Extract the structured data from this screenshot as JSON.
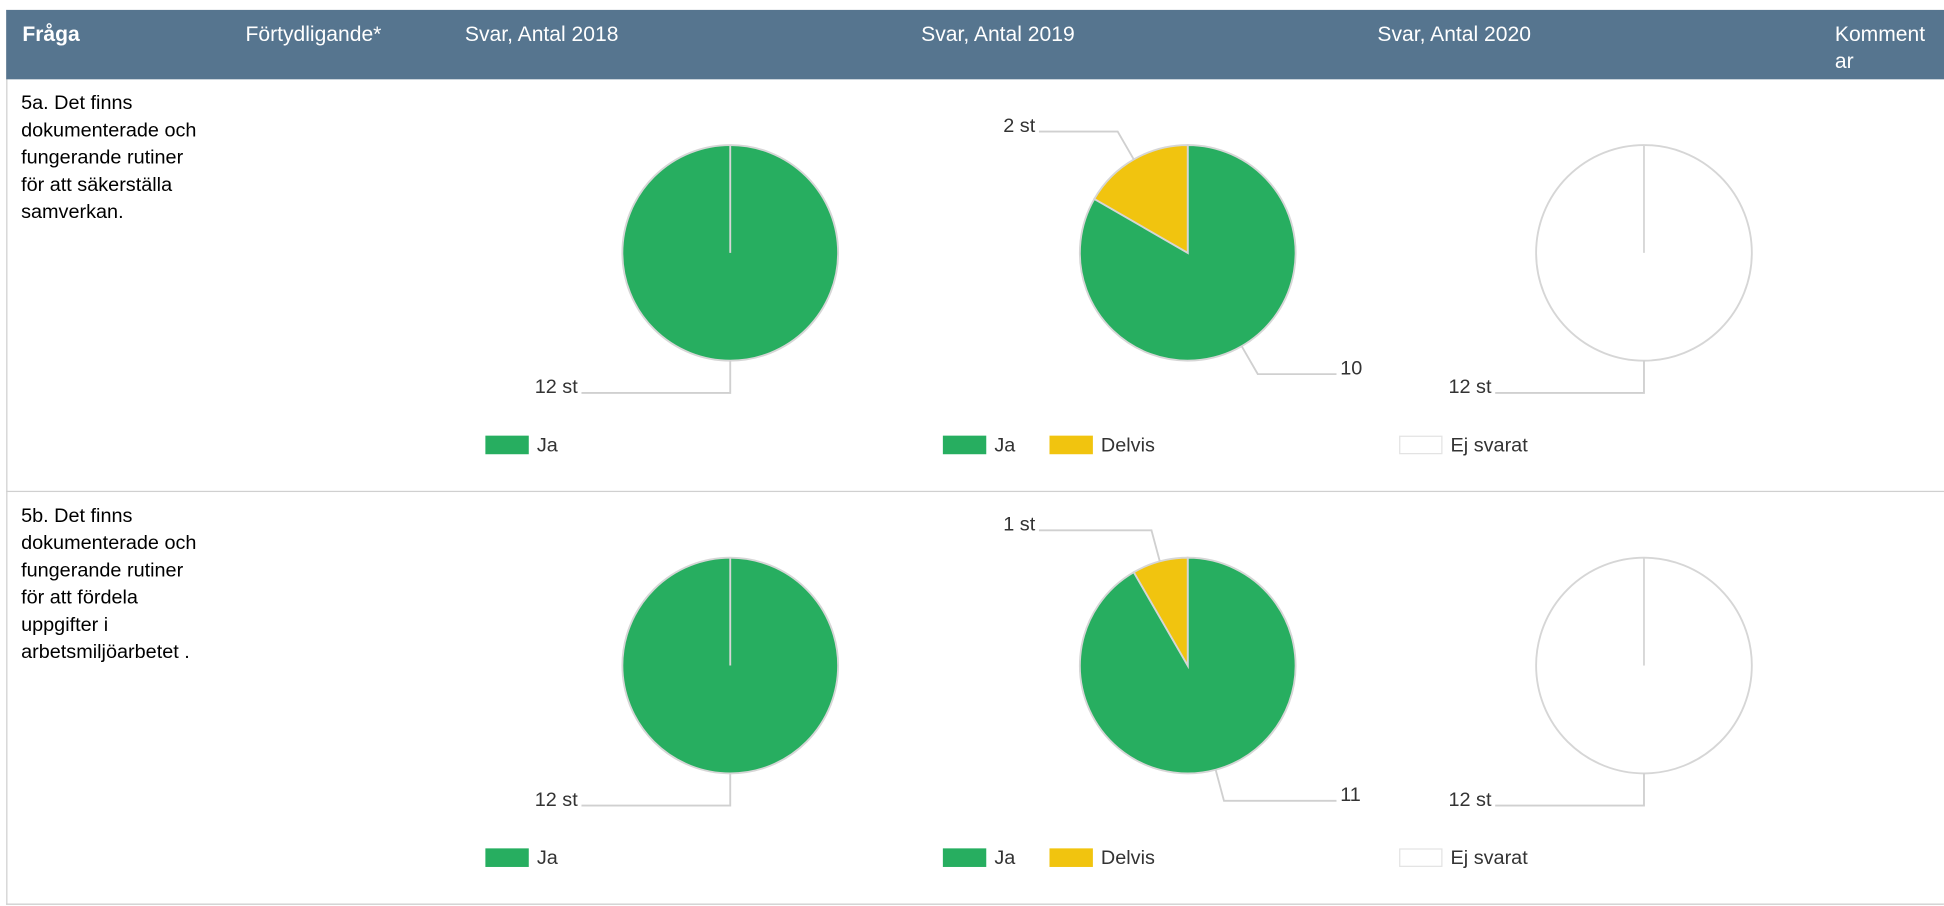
{
  "header": {
    "columns": [
      "Fråga",
      "Förtydligande*",
      "Svar, Antal 2018",
      "Svar, Antal 2019",
      "Svar, Antal 2020",
      "Kommentar"
    ]
  },
  "rows": [
    {
      "question": "5a. Det finns dokumenterade och fungerande rutiner för att säkerställa samverkan."
    },
    {
      "question": "5b. Det finns dokumenterade och fungerande rutiner för att fördela uppgifter i arbetsmiljöarbetet ."
    }
  ],
  "chart_data": [
    {
      "type": "pie",
      "categories": [
        "Ja"
      ],
      "values": [
        12
      ],
      "value_labels": [
        "12 st"
      ],
      "colors": [
        "#27ae60"
      ]
    },
    {
      "type": "pie",
      "categories": [
        "Ja",
        "Delvis"
      ],
      "values": [
        10,
        2
      ],
      "value_labels": [
        "10",
        "2 st"
      ],
      "colors": [
        "#27ae60",
        "#f1c40f"
      ]
    },
    {
      "type": "pie",
      "categories": [
        "Ej svarat"
      ],
      "values": [
        12
      ],
      "value_labels": [
        "12 st"
      ],
      "colors": [
        "#ffffff"
      ]
    },
    {
      "type": "pie",
      "categories": [
        "Ja"
      ],
      "values": [
        12
      ],
      "value_labels": [
        "12 st"
      ],
      "colors": [
        "#27ae60"
      ]
    },
    {
      "type": "pie",
      "categories": [
        "Ja",
        "Delvis"
      ],
      "values": [
        11,
        1
      ],
      "value_labels": [
        "11",
        "1 st"
      ],
      "colors": [
        "#27ae60",
        "#f1c40f"
      ]
    },
    {
      "type": "pie",
      "categories": [
        "Ej svarat"
      ],
      "values": [
        12
      ],
      "value_labels": [
        "12 st"
      ],
      "colors": [
        "#ffffff"
      ]
    }
  ]
}
